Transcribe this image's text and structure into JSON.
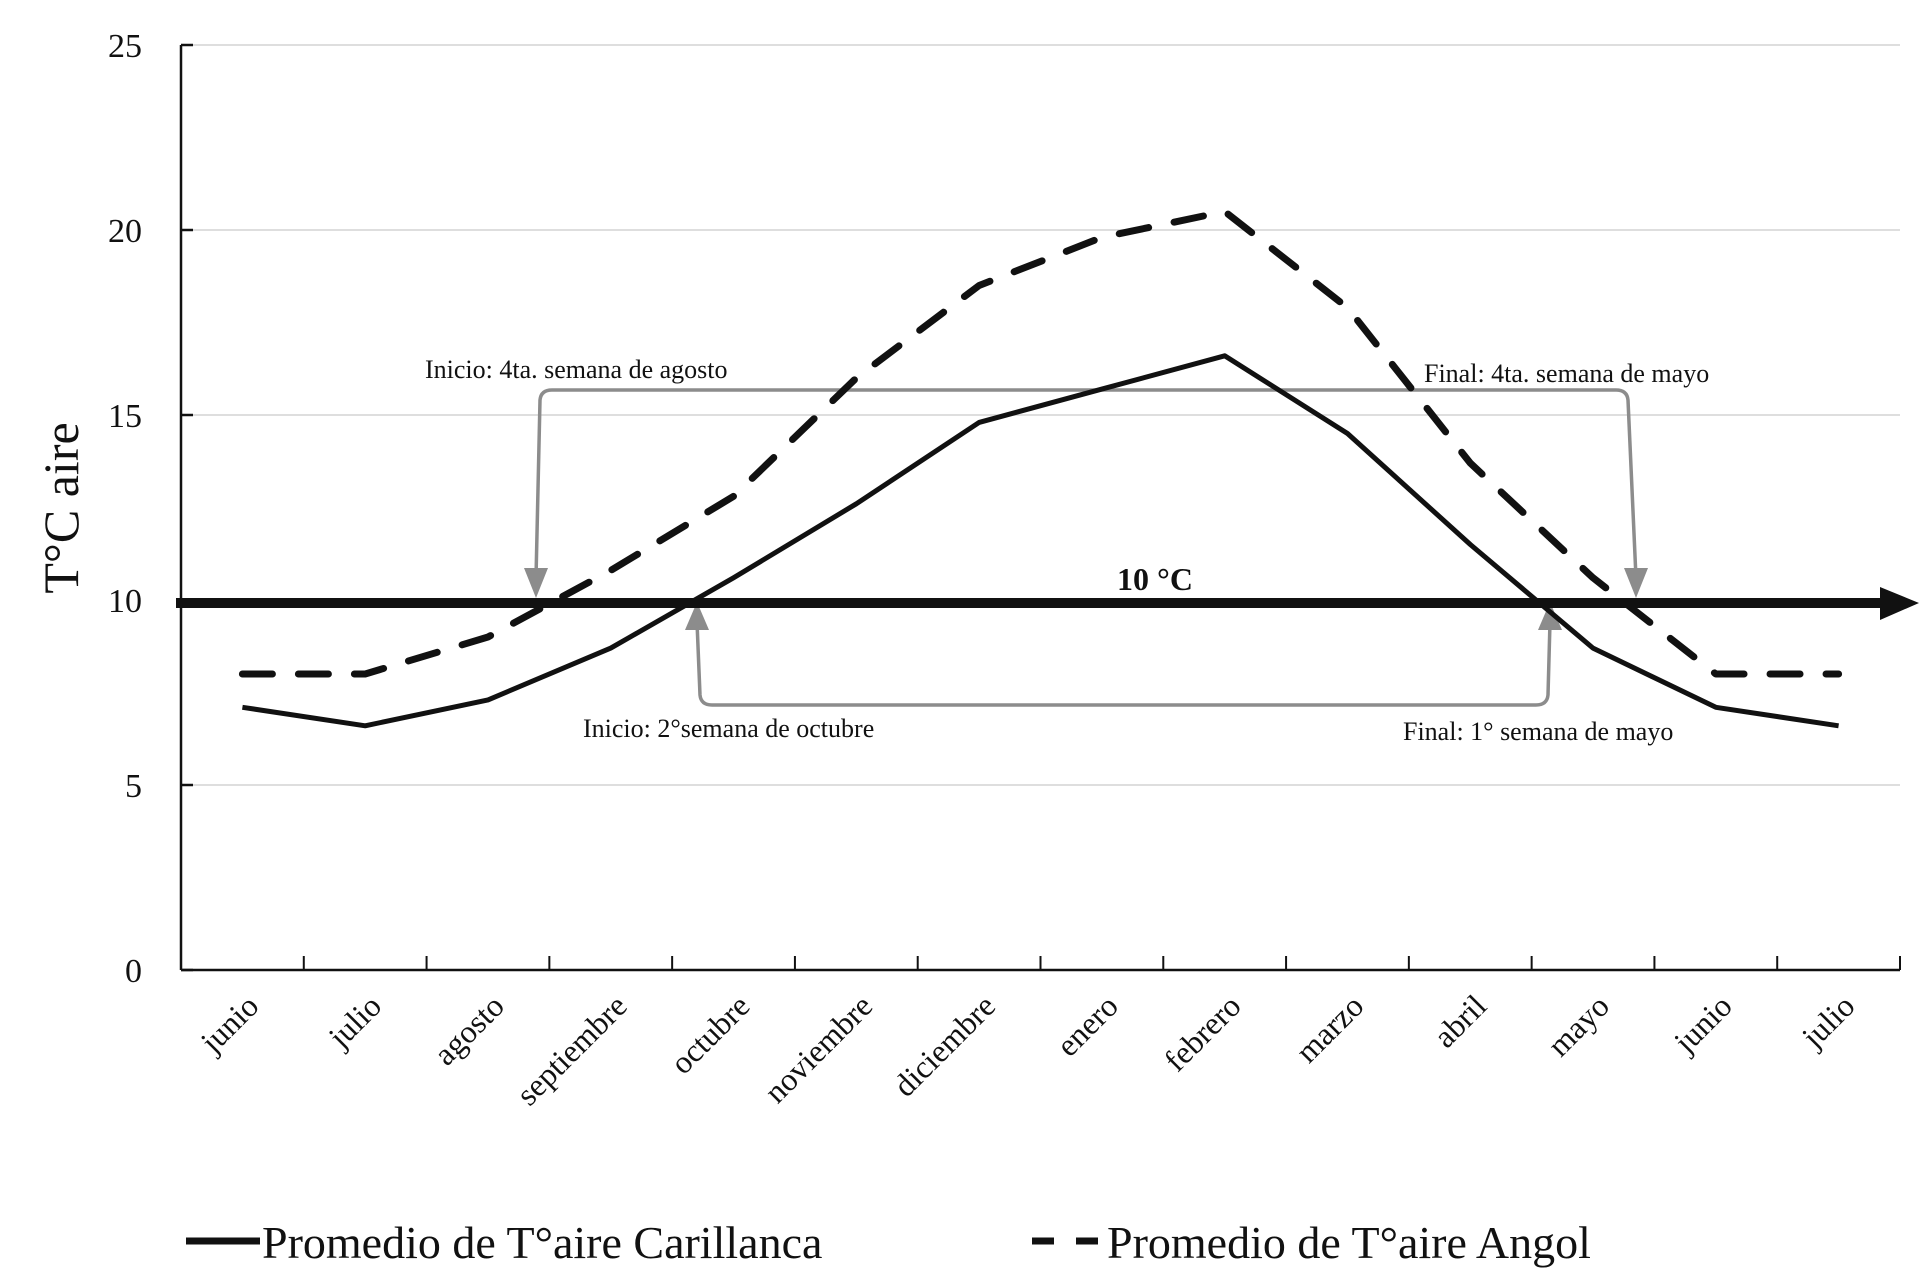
{
  "chart_data": {
    "type": "line",
    "title": "",
    "xlabel": "",
    "ylabel": "T°C aire",
    "ylim": [
      0,
      25
    ],
    "yticks": [
      0,
      5,
      10,
      15,
      20,
      25
    ],
    "grid": "horizontal",
    "legend_position": "bottom",
    "categories": [
      "junio",
      "julio",
      "agosto",
      "septiembre",
      "octubre",
      "noviembre",
      "diciembre",
      "enero",
      "febrero",
      "marzo",
      "abril",
      "mayo",
      "junio",
      "julio"
    ],
    "series": [
      {
        "name": "Promedio de T°aire Carillanca",
        "style": "solid",
        "color": "#111111",
        "values": [
          7.1,
          6.6,
          7.3,
          8.7,
          10.6,
          12.6,
          14.8,
          15.7,
          16.6,
          14.5,
          11.5,
          8.7,
          7.1,
          6.6
        ]
      },
      {
        "name": "Promedio de T°aire Angol",
        "style": "dashed",
        "color": "#111111",
        "values": [
          8.0,
          8.0,
          9.0,
          10.8,
          12.8,
          16.0,
          18.5,
          19.8,
          20.5,
          17.9,
          13.7,
          10.6,
          8.0,
          8.0
        ]
      }
    ],
    "threshold": {
      "value": 10,
      "label": "10 °C"
    },
    "annotations": [
      {
        "text": "Inicio:  4ta. semana de agosto",
        "series": "Angol",
        "type": "start"
      },
      {
        "text": "Final:  4ta. semana de mayo",
        "series": "Angol",
        "type": "end"
      },
      {
        "text": "Inicio:  2°semana  de octubre",
        "series": "Carillanca",
        "type": "start"
      },
      {
        "text": "Final:  1° semana de mayo",
        "series": "Carillanca",
        "type": "end"
      }
    ]
  },
  "yaxis": {
    "title": "T°C aire",
    "ticks": [
      "0",
      "5",
      "10",
      "15",
      "20",
      "25"
    ]
  },
  "threshold_label": "10 °C",
  "annotations": {
    "angol_start": "Inicio:  4ta. semana de agosto",
    "angol_end": "Final:  4ta. semana de mayo",
    "carillanca_start": "Inicio:  2°semana  de octubre",
    "carillanca_end": "Final:  1° semana de mayo"
  },
  "legend": {
    "carillanca": "Promedio de T°aire Carillanca",
    "angol": "Promedio de T°aire Angol"
  },
  "colors": {
    "line": "#111111",
    "annotation_arrow": "#8c8c8c",
    "grid": "#d4d4d4"
  }
}
